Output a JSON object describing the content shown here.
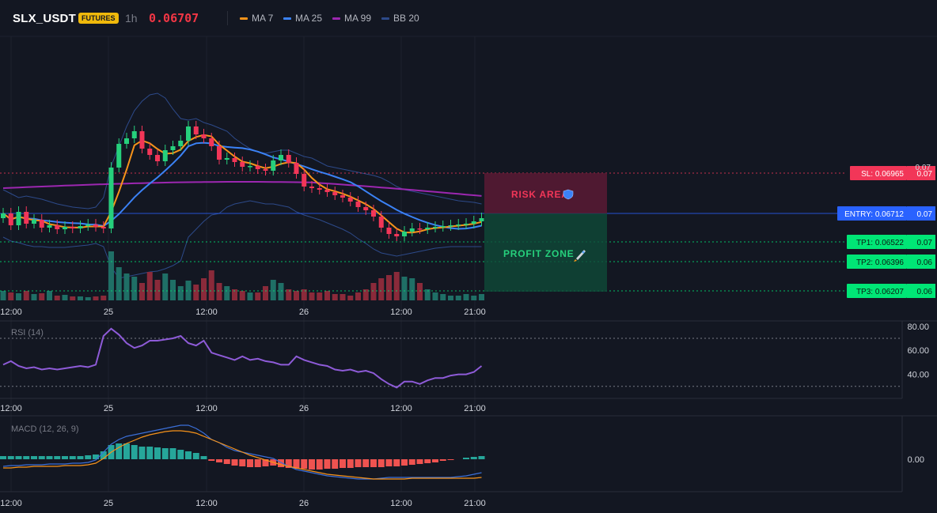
{
  "header": {
    "symbol": "SLX_USDT",
    "badge": "FUTURES",
    "timeframe": "1h",
    "last_price": "0.06707",
    "legend": [
      {
        "label": "MA 7",
        "color": "#f7931a"
      },
      {
        "label": "MA 25",
        "color": "#3b82f6"
      },
      {
        "label": "MA 99",
        "color": "#9c27b0"
      },
      {
        "label": "BB 20",
        "color": "#2d4a8a"
      }
    ]
  },
  "colors": {
    "up": "#26d07c",
    "down": "#f23658",
    "volume_up": "#1f6f66",
    "volume_down": "#8a2a3a",
    "rsi": "#8e5bd8",
    "macd": "#3b6fd8",
    "signal": "#f7931a",
    "hist_up": "#26a69a",
    "hist_down": "#ef5350"
  },
  "time_axis": [
    "12:00",
    "25",
    "12:00",
    "26",
    "12:00",
    "21:00"
  ],
  "levels": [
    {
      "key": "sl",
      "label": "SL: 0.06965",
      "axis_value": "0.07",
      "color": "#f23658",
      "style": "dotted"
    },
    {
      "key": "entry",
      "label": "ENTRY: 0.06712",
      "axis_value": "0.07",
      "color": "#2962ff",
      "style": "solid"
    },
    {
      "key": "tp1",
      "label": "TP1: 0.06522",
      "axis_value": "0.07",
      "color": "#00e676",
      "style": "dotted"
    },
    {
      "key": "tp2",
      "label": "TP2: 0.06396",
      "axis_value": "0.06",
      "color": "#00e676",
      "style": "dotted"
    },
    {
      "key": "tp3",
      "label": "TP3: 0.06207",
      "axis_value": "0.06",
      "color": "#00e676",
      "style": "dotted"
    }
  ],
  "price_axis_top": "0.07",
  "zones": {
    "risk_label": "RISK AREA",
    "risk_icon": "shield-icon",
    "profit_label": "PROFIT ZONE",
    "profit_icon": "rocket-icon"
  },
  "rsi": {
    "title": "RSI (14)",
    "axis": [
      "80.00",
      "60.00",
      "40.00"
    ],
    "bands": [
      70,
      30
    ],
    "values": [
      48,
      51,
      47,
      45,
      46,
      44,
      45,
      44,
      45,
      46,
      47,
      46,
      48,
      72,
      78,
      73,
      66,
      62,
      64,
      68,
      68,
      69,
      70,
      72,
      66,
      64,
      68,
      58,
      56,
      54,
      52,
      55,
      52,
      53,
      51,
      50,
      48,
      48,
      55,
      52,
      50,
      48,
      47,
      44,
      43,
      44,
      42,
      43,
      41,
      36,
      32,
      29,
      34,
      34,
      32,
      35,
      37,
      37,
      39,
      40,
      40,
      42,
      47
    ]
  },
  "macd": {
    "title": "MACD (12, 26, 9)",
    "axis": [
      "0.00"
    ]
  }
}
